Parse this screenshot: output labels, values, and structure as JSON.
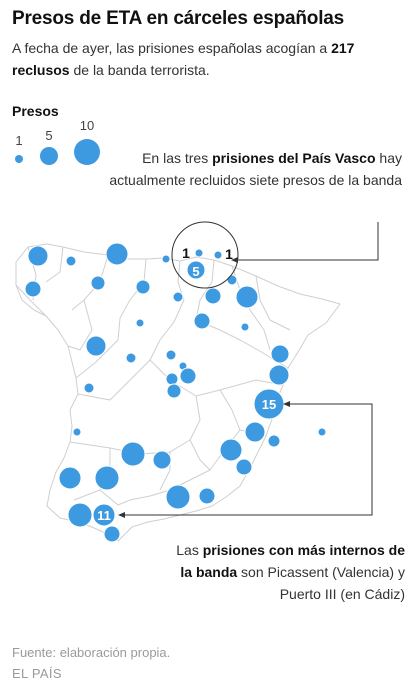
{
  "header": {
    "title": "Presos de ETA en cárceles españolas",
    "subtitle_pre": "A fecha de ayer, las prisiones españolas acogían a ",
    "subtitle_bold": "217 reclusos",
    "subtitle_post": " de la banda terrorista."
  },
  "legend": {
    "title": "Presos",
    "items": [
      {
        "label": "1",
        "value": 1
      },
      {
        "label": "5",
        "value": 5
      },
      {
        "label": "10",
        "value": 10
      }
    ]
  },
  "annotations": {
    "top_pre": "En las tres ",
    "top_bold": "prisiones del País Vasco",
    "top_post": " hay actualmente recluidos siete presos de la banda",
    "bottom_pre": "Las ",
    "bottom_bold": "prisiones con más internos de la banda",
    "bottom_post": " son Picassent (Valencia) y Puerto III (en Cádiz)"
  },
  "labels": {
    "basque_left": "1",
    "basque_right": "1",
    "basque_center": "5",
    "picassent": "15",
    "puerto_iii": "11"
  },
  "footer": {
    "source": "Fuente: elaboración propia.",
    "brand": "EL PAÍS"
  },
  "colors": {
    "bubble": "#3d9ae0",
    "bubble_stroke": "#ffffff",
    "borders": "#cfcfcf"
  }
}
